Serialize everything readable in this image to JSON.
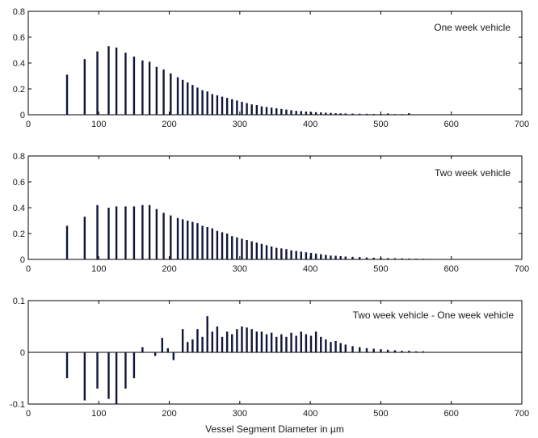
{
  "chart_data": [
    {
      "type": "bar",
      "title": "One week vehicle",
      "xlabel": "",
      "ylabel": "",
      "xlim": [
        0,
        700
      ],
      "ylim": [
        0,
        0.8
      ],
      "xticks": [
        "0",
        "100",
        "200",
        "300",
        "400",
        "500",
        "600",
        "700"
      ],
      "yticks": [
        "0",
        "0.2",
        "0.4",
        "0.6",
        "0.8"
      ],
      "x": [
        55,
        80,
        98,
        114,
        125,
        138,
        150,
        162,
        172,
        182,
        192,
        202,
        212,
        219,
        226,
        233,
        240,
        247,
        254,
        261,
        268,
        275,
        282,
        289,
        296,
        303,
        310,
        317,
        324,
        331,
        338,
        345,
        352,
        359,
        366,
        373,
        380,
        387,
        394,
        401,
        408,
        415,
        422,
        429,
        436,
        443,
        450,
        460,
        470,
        480,
        490,
        500,
        510,
        520,
        530,
        540
      ],
      "values": [
        0.31,
        0.43,
        0.49,
        0.53,
        0.52,
        0.48,
        0.45,
        0.42,
        0.41,
        0.37,
        0.35,
        0.32,
        0.29,
        0.27,
        0.25,
        0.23,
        0.21,
        0.19,
        0.18,
        0.16,
        0.15,
        0.14,
        0.13,
        0.12,
        0.11,
        0.1,
        0.09,
        0.08,
        0.075,
        0.065,
        0.06,
        0.055,
        0.05,
        0.045,
        0.04,
        0.035,
        0.03,
        0.028,
        0.025,
        0.022,
        0.02,
        0.018,
        0.016,
        0.014,
        0.012,
        0.011,
        0.01,
        0.009,
        0.008,
        0.007,
        0.006,
        0.006,
        0.01,
        0.005,
        0.005,
        0.012
      ]
    },
    {
      "type": "bar",
      "title": "Two week vehicle",
      "xlabel": "",
      "ylabel": "",
      "xlim": [
        0,
        700
      ],
      "ylim": [
        0,
        0.8
      ],
      "xticks": [
        "0",
        "100",
        "200",
        "300",
        "400",
        "500",
        "600",
        "700"
      ],
      "yticks": [
        "0",
        "0.2",
        "0.4",
        "0.6",
        "0.8"
      ],
      "x": [
        55,
        80,
        98,
        114,
        125,
        138,
        150,
        162,
        172,
        182,
        192,
        202,
        212,
        219,
        226,
        233,
        240,
        247,
        254,
        261,
        268,
        275,
        282,
        289,
        296,
        303,
        310,
        317,
        324,
        331,
        338,
        345,
        352,
        359,
        366,
        373,
        380,
        387,
        394,
        401,
        408,
        415,
        422,
        429,
        436,
        443,
        450,
        460,
        470,
        480,
        490,
        500,
        510,
        520,
        530,
        540,
        550,
        560,
        570
      ],
      "values": [
        0.26,
        0.33,
        0.42,
        0.4,
        0.41,
        0.41,
        0.41,
        0.42,
        0.42,
        0.39,
        0.36,
        0.34,
        0.32,
        0.31,
        0.3,
        0.29,
        0.28,
        0.26,
        0.25,
        0.24,
        0.22,
        0.21,
        0.2,
        0.18,
        0.17,
        0.16,
        0.15,
        0.14,
        0.13,
        0.12,
        0.11,
        0.1,
        0.09,
        0.085,
        0.08,
        0.07,
        0.065,
        0.06,
        0.055,
        0.05,
        0.045,
        0.04,
        0.035,
        0.03,
        0.028,
        0.025,
        0.022,
        0.02,
        0.018,
        0.015,
        0.013,
        0.012,
        0.01,
        0.009,
        0.008,
        0.007,
        0.006,
        0.005,
        0.004
      ]
    },
    {
      "type": "bar",
      "title": "Two week vehicle - One week vehicle",
      "xlabel": "Vessel Segment Diameter in µm",
      "ylabel": "",
      "xlim": [
        0,
        700
      ],
      "ylim": [
        -0.1,
        0.1
      ],
      "xticks": [
        "0",
        "100",
        "200",
        "300",
        "400",
        "500",
        "600",
        "700"
      ],
      "yticks": [
        "-0.1",
        "0",
        "0.1"
      ],
      "x": [
        55,
        80,
        98,
        114,
        125,
        138,
        150,
        162,
        180,
        190,
        198,
        206,
        219,
        226,
        233,
        240,
        247,
        254,
        261,
        268,
        275,
        282,
        289,
        296,
        303,
        310,
        317,
        324,
        331,
        338,
        345,
        352,
        359,
        366,
        373,
        380,
        387,
        394,
        401,
        408,
        415,
        422,
        429,
        436,
        443,
        450,
        460,
        470,
        480,
        490,
        500,
        510,
        520,
        530,
        540,
        550,
        560,
        570
      ],
      "values": [
        -0.05,
        -0.093,
        -0.07,
        -0.09,
        -0.1,
        -0.07,
        -0.05,
        0.01,
        -0.007,
        0.028,
        0.008,
        -0.015,
        0.045,
        0.02,
        0.025,
        0.045,
        0.03,
        0.07,
        0.04,
        0.05,
        0.03,
        0.04,
        0.035,
        0.045,
        0.05,
        0.048,
        0.045,
        0.04,
        0.04,
        0.035,
        0.038,
        0.03,
        0.035,
        0.03,
        0.038,
        0.032,
        0.04,
        0.035,
        0.032,
        0.04,
        0.03,
        0.025,
        0.02,
        0.022,
        0.018,
        0.015,
        0.012,
        0.01,
        0.008,
        0.007,
        0.006,
        0.005,
        0.004,
        0.003,
        0.003,
        0.002,
        0.002,
        0.001
      ]
    }
  ]
}
